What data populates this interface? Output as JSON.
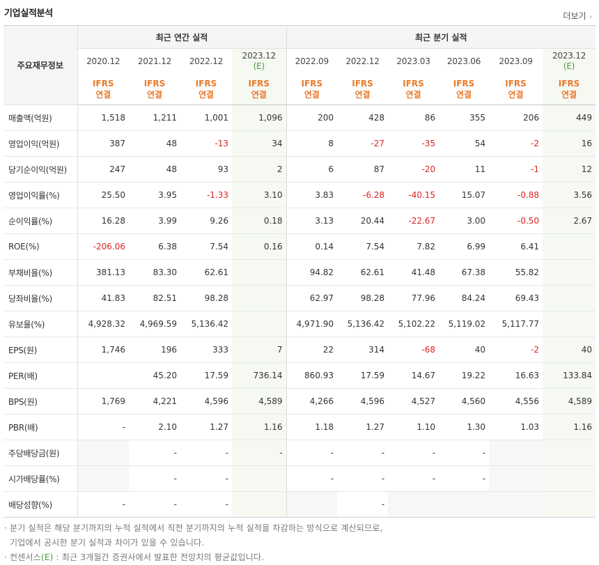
{
  "title": "기업실적분석",
  "more_label": "더보기",
  "row_header": "주요재무정보",
  "groups": {
    "annual": "최근 연간 실적",
    "quarterly": "최근 분기 실적"
  },
  "periods": [
    {
      "date": "2020.12",
      "est": ""
    },
    {
      "date": "2021.12",
      "est": ""
    },
    {
      "date": "2022.12",
      "est": ""
    },
    {
      "date": "2023.12",
      "est": "(E)"
    },
    {
      "date": "2022.09",
      "est": ""
    },
    {
      "date": "2022.12",
      "est": ""
    },
    {
      "date": "2023.03",
      "est": ""
    },
    {
      "date": "2023.06",
      "est": ""
    },
    {
      "date": "2023.09",
      "est": ""
    },
    {
      "date": "2023.12",
      "est": "(E)"
    }
  ],
  "ifrs": {
    "line1": "IFRS",
    "line2": "연결"
  },
  "rows": [
    {
      "label": "매출액(억원)",
      "values": [
        "1,518",
        "1,211",
        "1,001",
        "1,096",
        "200",
        "428",
        "86",
        "355",
        "206",
        "449"
      ]
    },
    {
      "label": "영업이익(억원)",
      "values": [
        "387",
        "48",
        "-13",
        "34",
        "8",
        "-27",
        "-35",
        "54",
        "-2",
        "16"
      ]
    },
    {
      "label": "당기순이익(억원)",
      "values": [
        "247",
        "48",
        "93",
        "2",
        "6",
        "87",
        "-20",
        "11",
        "-1",
        "12"
      ]
    },
    {
      "label": "영업이익률(%)",
      "values": [
        "25.50",
        "3.95",
        "-1.33",
        "3.10",
        "3.83",
        "-6.28",
        "-40.15",
        "15.07",
        "-0.88",
        "3.56"
      ]
    },
    {
      "label": "순이익률(%)",
      "values": [
        "16.28",
        "3.99",
        "9.26",
        "0.18",
        "3.13",
        "20.44",
        "-22.67",
        "3.00",
        "-0.50",
        "2.67"
      ]
    },
    {
      "label": "ROE(%)",
      "values": [
        "-206.06",
        "6.38",
        "7.54",
        "0.16",
        "0.14",
        "7.54",
        "7.82",
        "6.99",
        "6.41",
        ""
      ]
    },
    {
      "label": "부채비율(%)",
      "values": [
        "381.13",
        "83.30",
        "62.61",
        "",
        "94.82",
        "62.61",
        "41.48",
        "67.38",
        "55.82",
        ""
      ]
    },
    {
      "label": "당좌비율(%)",
      "values": [
        "41.83",
        "82.51",
        "98.28",
        "",
        "62.97",
        "98.28",
        "77.96",
        "84.24",
        "69.43",
        ""
      ]
    },
    {
      "label": "유보율(%)",
      "values": [
        "4,928.32",
        "4,969.59",
        "5,136.42",
        "",
        "4,971.90",
        "5,136.42",
        "5,102.22",
        "5,119.02",
        "5,117.77",
        ""
      ]
    },
    {
      "label": "EPS(원)",
      "values": [
        "1,746",
        "196",
        "333",
        "7",
        "22",
        "314",
        "-68",
        "40",
        "-2",
        "40"
      ]
    },
    {
      "label": "PER(배)",
      "values": [
        "",
        "45.20",
        "17.59",
        "736.14",
        "860.93",
        "17.59",
        "14.67",
        "19.22",
        "16.63",
        "133.84"
      ]
    },
    {
      "label": "BPS(원)",
      "values": [
        "1,769",
        "4,221",
        "4,596",
        "4,589",
        "4,266",
        "4,596",
        "4,527",
        "4,560",
        "4,556",
        "4,589"
      ]
    },
    {
      "label": "PBR(배)",
      "values": [
        "-",
        "2.10",
        "1.27",
        "1.16",
        "1.18",
        "1.27",
        "1.10",
        "1.30",
        "1.03",
        "1.16"
      ]
    },
    {
      "label": "주당배당금(원)",
      "values": [
        "",
        "-",
        "-",
        "-",
        "-",
        "-",
        "-",
        "-",
        "",
        ""
      ]
    },
    {
      "label": "시가배당률(%)",
      "values": [
        "",
        "-",
        "-",
        "",
        "-",
        "-",
        "-",
        "-",
        "",
        ""
      ]
    },
    {
      "label": "배당성향(%)",
      "values": [
        "-",
        "-",
        "-",
        "",
        "",
        "-",
        "",
        "",
        "",
        ""
      ]
    }
  ],
  "notes": {
    "line1": "· 분기 실적은 해당 분기까지의 누적 실적에서 직전 분기까지의 누적 실적을 차감하는 방식으로 계산되므로,",
    "line2": "기업에서 공시한 분기 실적과 차이가 있을 수 있습니다.",
    "line3_prefix": "· 컨센서스",
    "line3_e": "(E)",
    "line3_rest": " : 최근 3개월간 증권사에서 발표한 전망치의 평균값입니다."
  }
}
